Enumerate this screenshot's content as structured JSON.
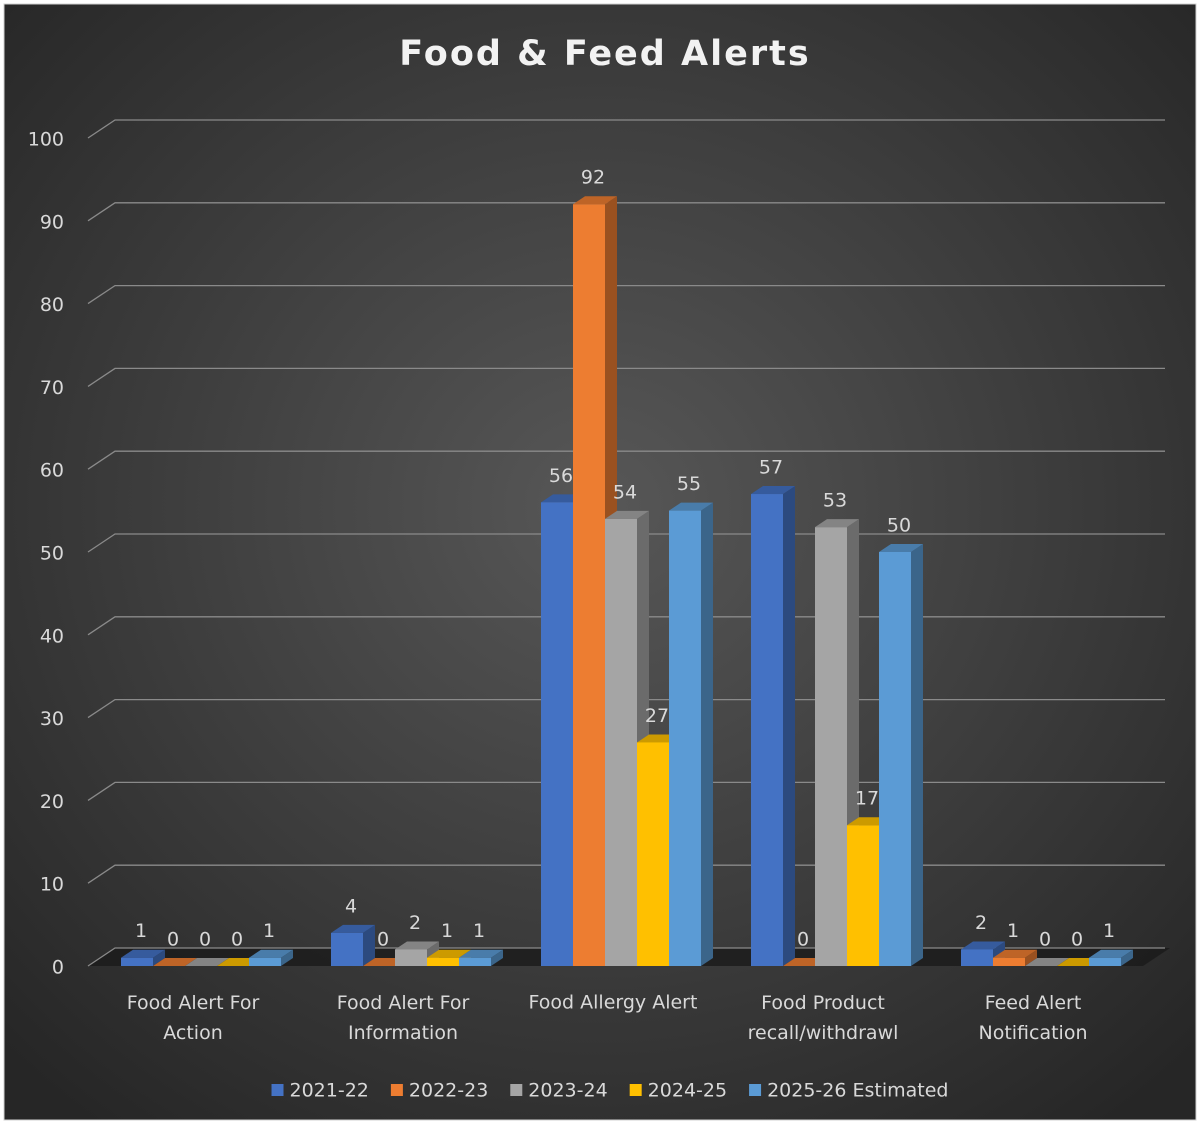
{
  "chart_data": {
    "type": "bar3d",
    "title": "Food & Feed Alerts",
    "categories": [
      "Food Alert For Action",
      "Food Alert For Information",
      "Food Allergy Alert",
      "Food Product recall/withdrawl",
      "Feed Alert Notification"
    ],
    "series": [
      {
        "name": "2021-22",
        "color": "#4472c4",
        "values": [
          1,
          4,
          56,
          57,
          2
        ]
      },
      {
        "name": "2022-23",
        "color": "#ed7d31",
        "values": [
          0,
          0,
          92,
          0,
          1
        ]
      },
      {
        "name": "2023-24",
        "color": "#a5a5a5",
        "values": [
          0,
          2,
          54,
          53,
          0
        ]
      },
      {
        "name": "2024-25",
        "color": "#ffc000",
        "values": [
          0,
          1,
          27,
          17,
          0
        ]
      },
      {
        "name": "2025-26 Estimated",
        "color": "#5b9bd5",
        "values": [
          1,
          1,
          55,
          50,
          1
        ]
      }
    ],
    "ylim": [
      0,
      100
    ],
    "yticks": [
      0,
      10,
      20,
      30,
      40,
      50,
      60,
      70,
      80,
      90,
      100
    ],
    "grid": true,
    "legend": "bottom"
  }
}
